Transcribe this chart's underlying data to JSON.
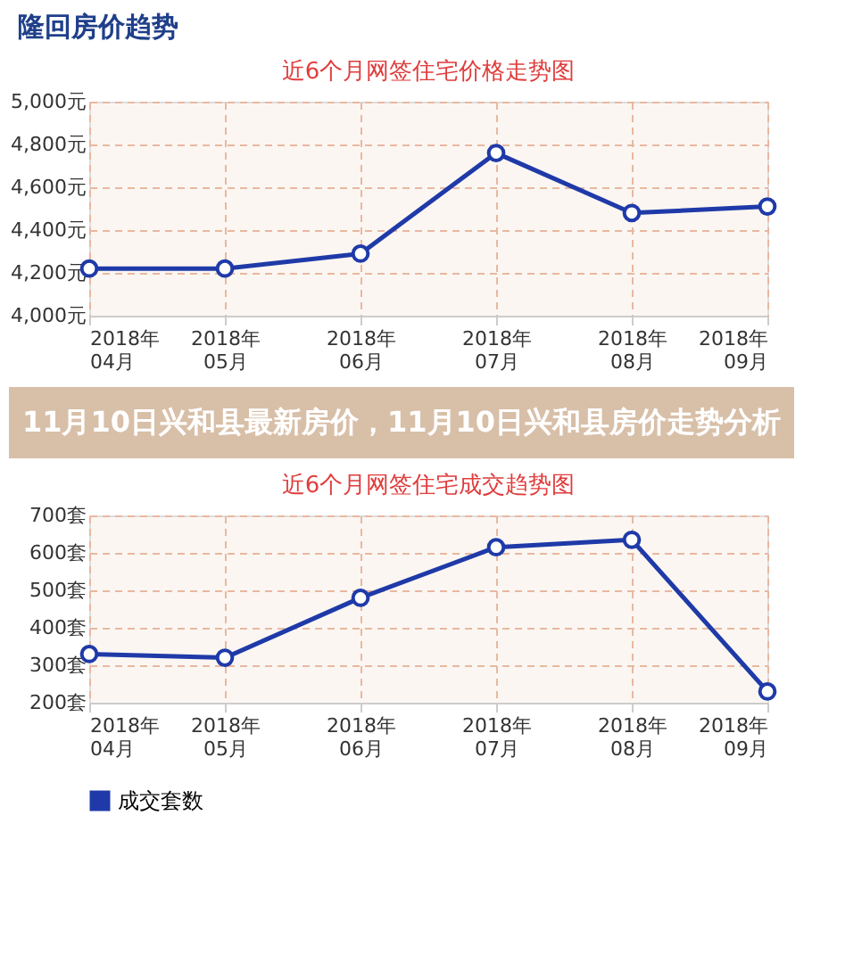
{
  "chart_data": [
    {
      "type": "line",
      "title": "近6个月网签住宅价格走势图",
      "annotations": [
        "隆回房价趋势"
      ],
      "categories": [
        "2018年\n04月",
        "2018年\n05月",
        "2018年\n06月",
        "2018年\n07月",
        "2018年\n08月",
        "2018年\n09月"
      ],
      "series": [
        {
          "color": "#1f3aa8",
          "values": [
            4220,
            4220,
            4290,
            4760,
            4480,
            4510
          ]
        }
      ],
      "ylim": [
        4000,
        5000
      ],
      "yticks": [
        {
          "value": 4000,
          "label": "4,000元"
        },
        {
          "value": 4200,
          "label": "4,200元"
        },
        {
          "value": 4400,
          "label": "4,400元"
        },
        {
          "value": 4600,
          "label": "4,600元"
        },
        {
          "value": 4800,
          "label": "4,800元"
        },
        {
          "value": 5000,
          "label": "5,000元"
        }
      ],
      "grid": true,
      "marker": "circle",
      "line_style": "solid",
      "legend": false
    },
    {
      "type": "line",
      "title": "近6个月网签住宅成交趋势图",
      "annotations": [
        "11月10日兴和县最新房价，11月10日兴和县房价走势分析"
      ],
      "categories": [
        "2018年\n04月",
        "2018年\n05月",
        "2018年\n06月",
        "2018年\n07月",
        "2018年\n08月",
        "2018年\n09月"
      ],
      "series": [
        {
          "name": "成交套数",
          "color": "#1f3aa8",
          "values": [
            330,
            320,
            480,
            615,
            635,
            230
          ]
        }
      ],
      "ylim": [
        200,
        700
      ],
      "yticks": [
        {
          "value": 200,
          "label": "200套"
        },
        {
          "value": 300,
          "label": "300套"
        },
        {
          "value": 400,
          "label": "400套"
        },
        {
          "value": 500,
          "label": "500套"
        },
        {
          "value": 600,
          "label": "600套"
        },
        {
          "value": 700,
          "label": "700套"
        }
      ],
      "grid": true,
      "marker": "circle",
      "line_style": "solid",
      "legend": "bottom"
    }
  ]
}
